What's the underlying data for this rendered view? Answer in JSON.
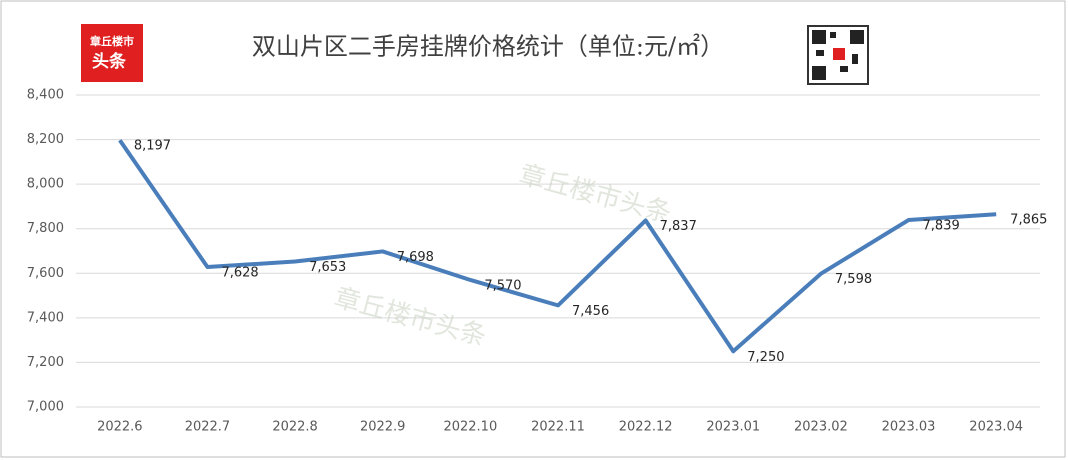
{
  "chart_data": {
    "type": "line",
    "title": "双山片区二手房挂牌价格统计（单位:元/㎡）",
    "logo": [
      "章丘楼市",
      "头条"
    ],
    "watermark": "章丘楼市头条",
    "categories": [
      "2022.6",
      "2022.7",
      "2022.8",
      "2022.9",
      "2022.10",
      "2022.11",
      "2022.12",
      "2023.01",
      "2023.02",
      "2023.03",
      "2023.04"
    ],
    "values": [
      8197,
      7628,
      7653,
      7698,
      7570,
      7456,
      7837,
      7250,
      7598,
      7839,
      7865
    ],
    "value_labels": [
      "8,197",
      "7,628",
      "7,653",
      "7,698",
      "7,570",
      "7,456",
      "7,837",
      "7,250",
      "7,598",
      "7,839",
      "7,865"
    ],
    "color": "#4a7ebb",
    "ylim": [
      7000,
      8400
    ],
    "yticks": [
      {
        "value": 7000,
        "label": "7,000"
      },
      {
        "value": 7200,
        "label": "7,200"
      },
      {
        "value": 7400,
        "label": "7,400"
      },
      {
        "value": 7600,
        "label": "7,600"
      },
      {
        "value": 7800,
        "label": "7,800"
      },
      {
        "value": 8000,
        "label": "8,000"
      },
      {
        "value": 8200,
        "label": "8,200"
      },
      {
        "value": 8400,
        "label": "8,400"
      }
    ],
    "grid": true
  }
}
